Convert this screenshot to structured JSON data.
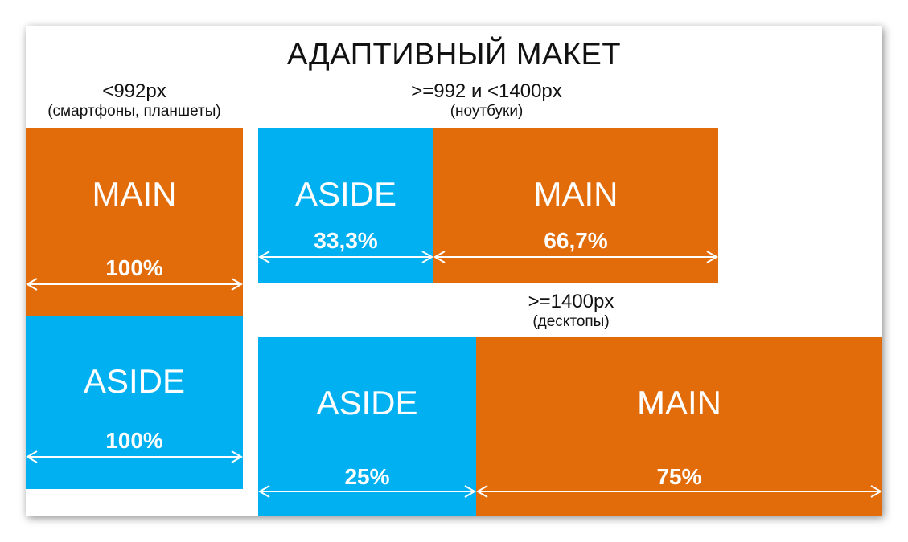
{
  "title": "АДАПТИВНЫЙ МАКЕТ",
  "breakpoints": {
    "mobile": {
      "range": "<992px",
      "devices": "(смартфоны, планшеты)"
    },
    "laptop": {
      "range": ">=992 и <1400px",
      "devices": "(ноутбуки)"
    },
    "desktop": {
      "range": ">=1400px",
      "devices": "(десктопы)"
    }
  },
  "layouts": {
    "mobile": {
      "main": {
        "name": "MAIN",
        "width": "100%"
      },
      "aside": {
        "name": "ASIDE",
        "width": "100%"
      }
    },
    "laptop": {
      "aside": {
        "name": "ASIDE",
        "width": "33,3%"
      },
      "main": {
        "name": "MAIN",
        "width": "66,7%"
      }
    },
    "desktop": {
      "aside": {
        "name": "ASIDE",
        "width": "25%"
      },
      "main": {
        "name": "MAIN",
        "width": "75%"
      }
    }
  },
  "colors": {
    "main": "#e36c0a",
    "aside": "#00b0f0",
    "text_on_block": "#ffffff"
  }
}
